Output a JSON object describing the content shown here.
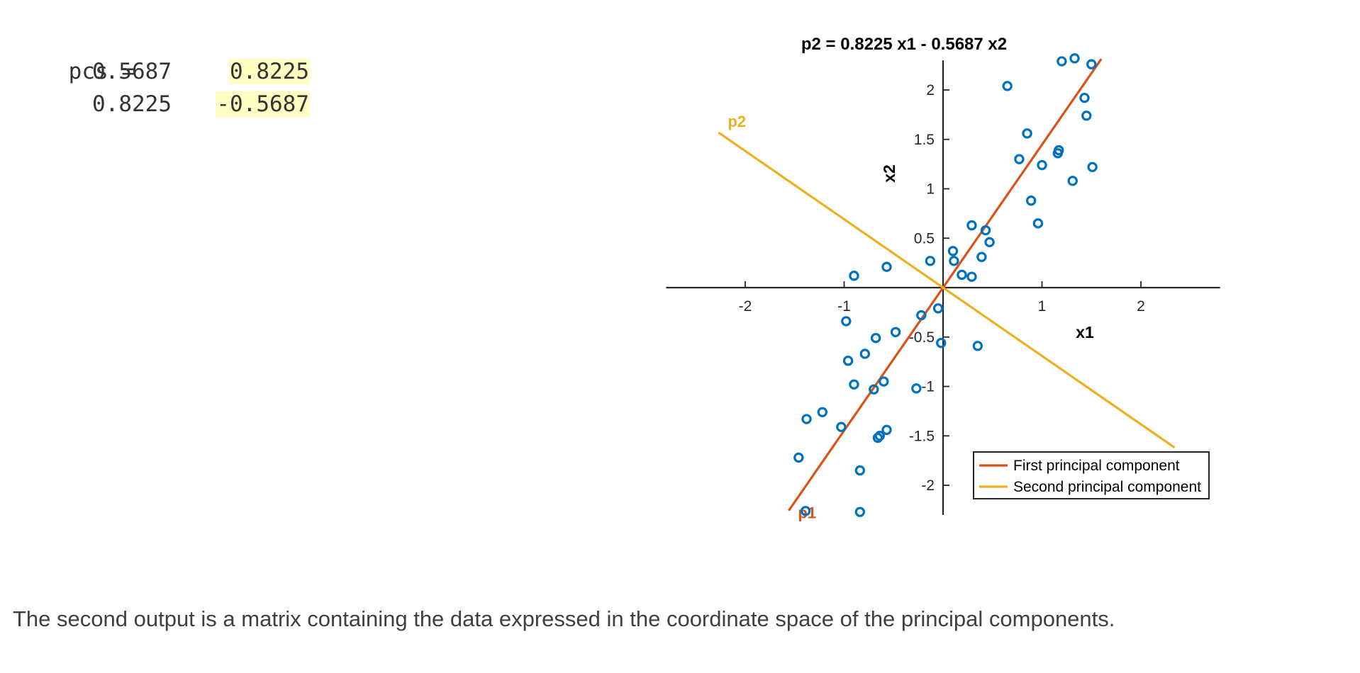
{
  "code_output": {
    "variable_line": "pcs =",
    "rows": [
      [
        "0.5687",
        "0.8225"
      ],
      [
        "0.8225",
        "-0.5687"
      ]
    ],
    "highlight_color": "#ffffc4"
  },
  "caption": "The second output is a matrix containing the data expressed in the coordinate space of the principal components.",
  "chart_data": {
    "type": "scatter",
    "title": "p2 = 0.8225 x1 - 0.5687 x2",
    "xlabel": "x1",
    "ylabel": "x2",
    "xlim": [
      -2.8,
      2.8
    ],
    "ylim": [
      -2.3,
      2.3
    ],
    "xticks": [
      {
        "value": -2,
        "label": "-2"
      },
      {
        "value": -1,
        "label": "-1"
      },
      {
        "value": 1,
        "label": "1"
      },
      {
        "value": 2,
        "label": "2"
      }
    ],
    "yticks": [
      {
        "value": 2,
        "label": "2"
      },
      {
        "value": 1.5,
        "label": "1.5"
      },
      {
        "value": 1,
        "label": "1"
      },
      {
        "value": 0.5,
        "label": "0.5"
      },
      {
        "value": -0.5,
        "label": "-0.5"
      },
      {
        "value": -1,
        "label": "-1"
      },
      {
        "value": -1.5,
        "label": "-1.5"
      },
      {
        "value": -2,
        "label": "-2"
      }
    ],
    "grid": false,
    "legend_position": "bottom-right",
    "scatter": {
      "color": "#0072bd",
      "x": [
        1.2,
        1.33,
        1.5,
        0.65,
        1.43,
        1.45,
        0.85,
        0.77,
        1.17,
        1.16,
        1.0,
        1.51,
        1.31,
        0.89,
        0.96,
        0.29,
        0.43,
        0.47,
        0.1,
        0.11,
        -0.13,
        0.39,
        0.19,
        0.29,
        -0.9,
        -0.57,
        -0.05,
        -0.98,
        -0.48,
        -0.22,
        -0.68,
        -0.79,
        -0.96,
        -0.02,
        0.35,
        -0.6,
        -0.9,
        -0.7,
        -0.27,
        -1.22,
        -1.38,
        -1.03,
        -0.57,
        -0.64,
        -0.66,
        -1.46,
        -0.84,
        -1.39,
        -0.84
      ],
      "y": [
        2.29,
        2.32,
        2.26,
        2.04,
        1.92,
        1.74,
        1.56,
        1.3,
        1.39,
        1.36,
        1.24,
        1.22,
        1.08,
        0.88,
        0.65,
        0.63,
        0.58,
        0.46,
        0.37,
        0.27,
        0.27,
        0.31,
        0.13,
        0.11,
        0.12,
        0.21,
        -0.21,
        -0.34,
        -0.45,
        -0.28,
        -0.51,
        -0.67,
        -0.74,
        -0.56,
        -0.59,
        -0.95,
        -0.98,
        -1.03,
        -1.02,
        -1.26,
        -1.33,
        -1.41,
        -1.44,
        -1.5,
        -1.52,
        -1.72,
        -1.85,
        -2.26,
        -2.27
      ]
    },
    "lines": [
      {
        "name": "First principal component",
        "label": "p1",
        "color": "#d95319",
        "slope": 1.4463,
        "x_range": [
          -1.56,
          1.6
        ]
      },
      {
        "name": "Second principal component",
        "label": "p2",
        "color": "#edb120",
        "slope": -0.6914,
        "x_range": [
          -2.27,
          2.34
        ]
      }
    ]
  }
}
